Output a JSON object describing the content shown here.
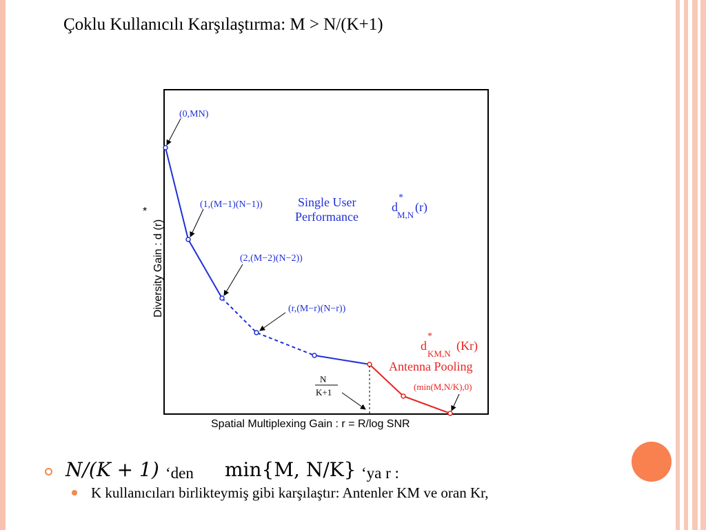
{
  "slide": {
    "title": "Çoklu Kullanıcılı Karşılaştırma: M > N/(K+1)",
    "bullet1": {
      "math1": "N/(K + 1)",
      "text1": "‘den",
      "math2": "min{M, N/K}",
      "text2": "‘ya r :"
    },
    "bullet2": "K kullanıcıları birlikteymiş gibi karşılaştır: Antenler KM ve oran Kr,"
  },
  "figure": {
    "xlabel": "Spatial Multiplexing Gain : r = R/log SNR",
    "ylabel": "Diversity Gain : d (r)",
    "ylabel_star": "*",
    "labels": {
      "p0": "(0,MN)",
      "p1": "(1,(M−1)(N−1))",
      "p2": "(2,(M−2)(N−2))",
      "pr": "(r,(M−r)(N−r))",
      "pend": "(min(M,N/K),0)",
      "single_user_1": "Single User",
      "single_user_2": "Performance",
      "dmn_d": "d",
      "dmn_sub": "M,N",
      "dmn_sup": "*",
      "dmn_r": "(r)",
      "dkmn_d": "d",
      "dkmn_sub": "KM,N",
      "dkmn_sup": "*",
      "dkmn_r": "(Kr)",
      "antenna_pooling": "Antenna Pooling",
      "frac_num": "N",
      "frac_den": "K+1"
    },
    "colors": {
      "blue": "#1f2fd6",
      "red": "#e8231f",
      "black": "#000000"
    }
  }
}
